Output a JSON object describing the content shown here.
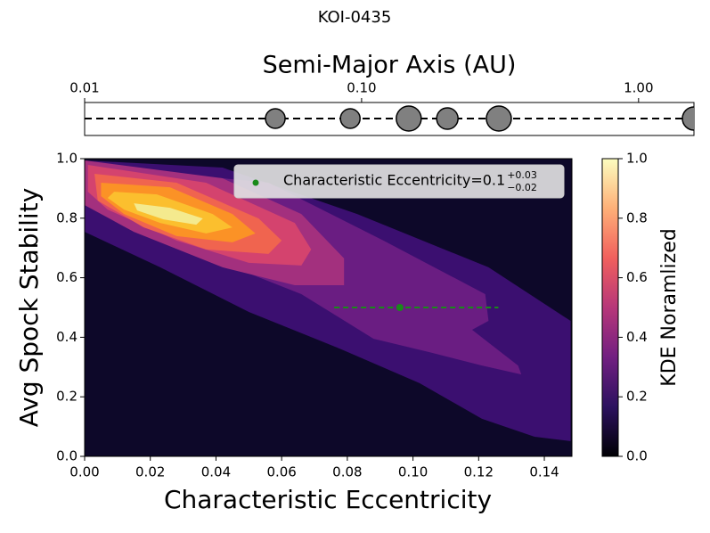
{
  "title": "KOI-0435",
  "chart_data": [
    {
      "type": "scatter",
      "xlabel": "Semi-Major Axis (AU)",
      "log_x": true,
      "x": [
        0.0488,
        0.091,
        0.148,
        0.204,
        0.313,
        1.585
      ],
      "sizes": [
        11,
        11,
        14,
        12,
        14,
        13
      ],
      "color": "#808080",
      "xlim": [
        0.01,
        1.585
      ],
      "xticks": [
        0.01,
        {
          "value": 0.1,
          "label": "0.10"
        },
        {
          "value": 1,
          "label": "1.00"
        }
      ]
    },
    {
      "type": "contour",
      "xlabel": "Characteristic Eccentricity",
      "ylabel": "Avg Spock Stability",
      "xlim": [
        0,
        0.1484
      ],
      "ylim": [
        0,
        1
      ],
      "xticks": [
        {
          "value": 0,
          "label": "0.00"
        },
        0.02,
        0.04,
        0.06,
        0.08,
        {
          "value": 0.1,
          "label": "0.10"
        },
        0.12,
        0.14
      ],
      "yticks": [
        {
          "value": 0,
          "label": "0.0"
        },
        0.2,
        0.4,
        0.6,
        0.8,
        {
          "value": 1,
          "label": "1.0"
        }
      ],
      "levels": [
        {
          "level": 0,
          "color": "#0d0829",
          "ecc": [
            0,
            0.1484,
            0.1484,
            0
          ],
          "stability": [
            1,
            1,
            0,
            0
          ]
        },
        {
          "level": 0.15,
          "color": "#3b0f70",
          "ecc": [
            0,
            0.042,
            0.083,
            0.123,
            0.148,
            0.148,
            0.137,
            0.121,
            0.102,
            0.077,
            0.05,
            0.023,
            0
          ],
          "stability": [
            0.994,
            0.97,
            0.814,
            0.635,
            0.455,
            0.051,
            0.066,
            0.126,
            0.246,
            0.365,
            0.485,
            0.635,
            0.754
          ]
        },
        {
          "level": 0.3,
          "color": "#6a1d82",
          "ecc": [
            0,
            0.056,
            0.091,
            0.122,
            0.123,
            0.118,
            0.132,
            0.133,
            0.121,
            0.105,
            0.088,
            0.066,
            0.028,
            0
          ],
          "stability": [
            0.979,
            0.919,
            0.725,
            0.545,
            0.455,
            0.425,
            0.305,
            0.275,
            0.305,
            0.35,
            0.395,
            0.545,
            0.71,
            0.859
          ]
        },
        {
          "level": 0.45,
          "color": "#a3307e",
          "ecc": [
            0,
            0.042,
            0.066,
            0.079,
            0.079,
            0.064,
            0.042,
            0.015,
            0
          ],
          "stability": [
            0.994,
            0.934,
            0.814,
            0.665,
            0.575,
            0.575,
            0.635,
            0.754,
            0.844
          ]
        },
        {
          "level": 0.55,
          "color": "#d4436e",
          "ecc": [
            0.001,
            0.037,
            0.064,
            0.069,
            0.066,
            0.05,
            0.028,
            0.007,
            0.001
          ],
          "stability": [
            0.979,
            0.919,
            0.784,
            0.695,
            0.641,
            0.65,
            0.725,
            0.829,
            0.889
          ]
        },
        {
          "level": 0.65,
          "color": "#f0644f",
          "ecc": [
            0.003,
            0.028,
            0.053,
            0.06,
            0.056,
            0.037,
            0.018,
            0.004
          ],
          "stability": [
            0.949,
            0.919,
            0.799,
            0.725,
            0.68,
            0.695,
            0.769,
            0.859
          ]
        },
        {
          "level": 0.75,
          "color": "#fb9226",
          "ecc": [
            0.005,
            0.026,
            0.045,
            0.052,
            0.045,
            0.028,
            0.012,
            0.005
          ],
          "stability": [
            0.919,
            0.904,
            0.814,
            0.749,
            0.719,
            0.74,
            0.814,
            0.874
          ]
        },
        {
          "level": 0.85,
          "color": "#fbbf2e",
          "ecc": [
            0.009,
            0.022,
            0.039,
            0.045,
            0.037,
            0.023,
            0.012,
            0.007
          ],
          "stability": [
            0.889,
            0.88,
            0.814,
            0.769,
            0.749,
            0.784,
            0.829,
            0.868
          ]
        },
        {
          "level": 0.95,
          "color": "#f4ea8e",
          "ecc": [
            0.015,
            0.026,
            0.036,
            0.034,
            0.024,
            0.016
          ],
          "stability": [
            0.85,
            0.835,
            0.799,
            0.778,
            0.796,
            0.826
          ]
        }
      ],
      "point": {
        "x": 0.096,
        "y": 0.5,
        "xerr_minus": 0.02,
        "xerr_plus": 0.03,
        "color": "#1a8a1a"
      },
      "legend_label": "Characteristic Eccentricity=0.1",
      "legend_sup": "+0.03",
      "legend_sub": "−0.02",
      "colorbar": {
        "label": "KDE Noramlized",
        "lim": [
          0,
          1
        ],
        "ticks": [
          {
            "value": 0,
            "label": "0.0"
          },
          0.2,
          0.4,
          0.6,
          0.8,
          {
            "value": 1,
            "label": "1.0"
          }
        ],
        "colors": [
          "#000004",
          "#2c115f",
          "#721f81",
          "#b73779",
          "#f1605d",
          "#feb078",
          "#fcfdbf"
        ]
      }
    }
  ]
}
